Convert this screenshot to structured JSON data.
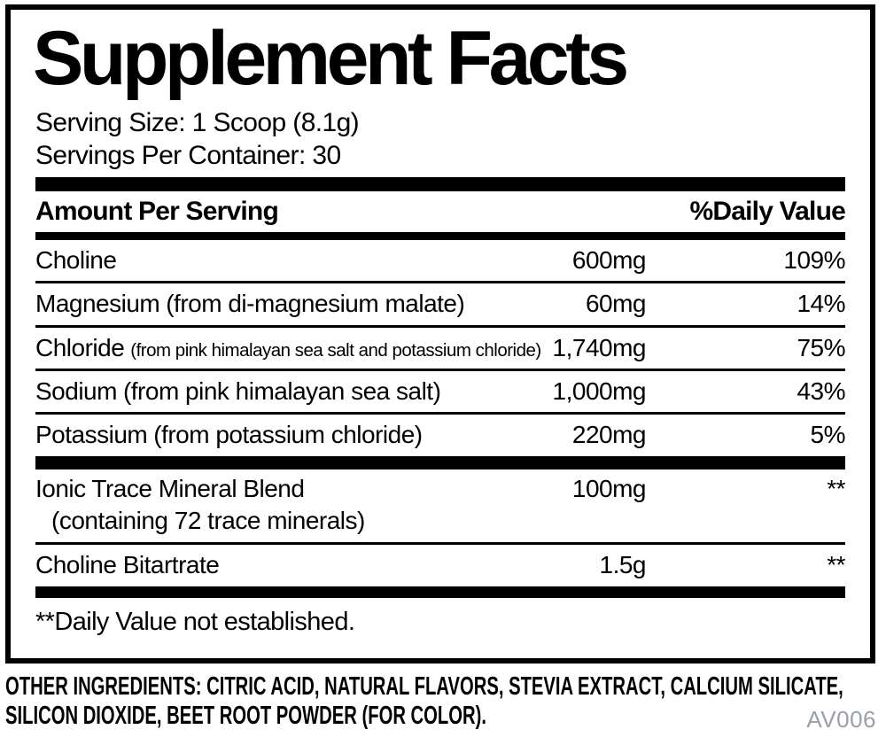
{
  "title": "Supplement Facts",
  "serving": {
    "size": "Serving Size: 1 Scoop (8.1g)",
    "per_container": "Servings Per Container: 30"
  },
  "table": {
    "header": {
      "amount_per_serving": "Amount Per Serving",
      "daily_value": "%Daily Value"
    },
    "rows": [
      {
        "name": "Choline",
        "detail": "",
        "amount": "600mg",
        "dv": "109%"
      },
      {
        "name": "Magnesium",
        "detail": "(from di-magnesium malate)",
        "amount": "60mg",
        "dv": "14%"
      },
      {
        "name": "Chloride",
        "detail": "(from pink himalayan sea salt and potassium chloride)",
        "amount": "1,740mg",
        "dv": "75%"
      },
      {
        "name": "Sodium",
        "detail": "(from pink himalayan sea salt)",
        "amount": "1,000mg",
        "dv": "43%"
      },
      {
        "name": "Potassium",
        "detail": "(from potassium chloride)",
        "amount": "220mg",
        "dv": "5%"
      }
    ],
    "blend": {
      "name": "Ionic Trace Mineral Blend",
      "sub": "(containing 72 trace minerals)",
      "amount": "100mg",
      "dv": "**"
    },
    "extra": {
      "name": "Choline Bitartrate",
      "amount": "1.5g",
      "dv": "**"
    },
    "footnote": "**Daily Value not established."
  },
  "other_ingredients": "OTHER INGREDIENTS: CITRIC ACID, NATURAL FLAVORS, STEVIA EXTRACT, CALCIUM SILICATE, SILICON DIOXIDE, BEET ROOT POWDER (FOR COLOR).",
  "code": "AV006",
  "colors": {
    "text": "#000000",
    "muted_code": "#9aa0a6",
    "bars": "#000000",
    "background": "#ffffff"
  }
}
